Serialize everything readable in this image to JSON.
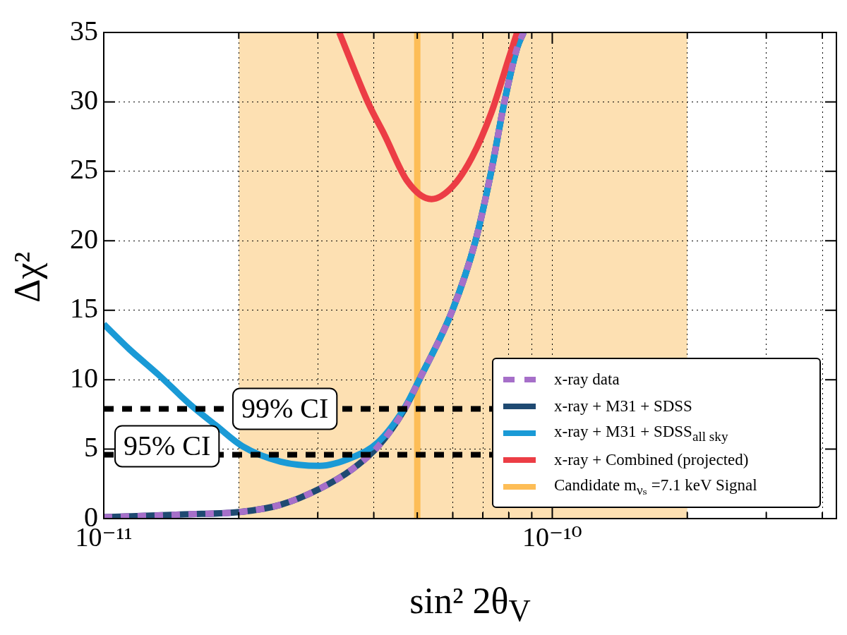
{
  "chart_data": {
    "type": "line",
    "xlabel": "sin² 2θ$_{V}$",
    "ylabel": "Δχ²",
    "log": "x",
    "grid": true,
    "legend": "bottom right",
    "marker": "none",
    "xlim": [
      1e-11,
      4.3e-10
    ],
    "xticks": [
      {
        "value": 1e-11,
        "label": "10⁻¹¹"
      },
      {
        "value": 2e-11,
        "label": null
      },
      {
        "value": 3e-11,
        "label": null
      },
      {
        "value": 4e-11,
        "label": null
      },
      {
        "value": 5e-11,
        "label": null
      },
      {
        "value": 6e-11,
        "label": null
      },
      {
        "value": 7e-11,
        "label": null
      },
      {
        "value": 8e-11,
        "label": null
      },
      {
        "value": 9e-11,
        "label": null
      },
      {
        "value": 1e-10,
        "label": "10⁻¹⁰"
      },
      {
        "value": 2e-10,
        "label": null
      },
      {
        "value": 3e-10,
        "label": null
      },
      {
        "value": 4e-10,
        "label": null
      }
    ],
    "ylim": [
      0,
      35
    ],
    "yticks": [
      0,
      5,
      10,
      15,
      20,
      25,
      30,
      35
    ],
    "series": [
      {
        "name": "x-ray data",
        "color": "#a66fc9",
        "line_style": "dashed",
        "x": [
          1e-11,
          1.51e-11,
          2.04e-11,
          2.48e-11,
          3.03e-11,
          3.58e-11,
          4.09e-11,
          4.67e-11,
          5.07e-11,
          5.99e-11,
          6.73e-11,
          7.31e-11,
          7.81e-11,
          8.35e-11,
          8.63e-11
        ],
        "values": [
          0.1,
          0.3,
          0.5,
          1.0,
          2.15,
          3.55,
          5.2,
          7.8,
          10.1,
          15.0,
          19.9,
          25.0,
          29.9,
          33.9,
          35
        ]
      },
      {
        "name": "x-ray + M31 + SDSS",
        "color": "#1f4a72",
        "line_style": "solid",
        "x": [
          1e-11,
          1.51e-11,
          2.04e-11,
          2.48e-11,
          3.03e-11,
          3.58e-11,
          4.09e-11,
          4.67e-11,
          5.07e-11,
          5.99e-11,
          6.73e-11,
          7.31e-11,
          7.81e-11,
          8.35e-11,
          8.63e-11
        ],
        "values": [
          0.1,
          0.3,
          0.5,
          1.0,
          2.15,
          3.55,
          5.2,
          7.8,
          10.1,
          15.0,
          19.9,
          25.0,
          29.9,
          33.9,
          35
        ]
      },
      {
        "name": "x-ray + M31 + SDSS$_{all sky}$",
        "color": "#1a9ad6",
        "line_style": "solid",
        "x": [
          1e-11,
          1.14e-11,
          1.32e-11,
          1.56e-11,
          1.78e-11,
          2.04e-11,
          2.48e-11,
          3.03e-11,
          3.58e-11,
          4.09e-11,
          4.67e-11,
          5.07e-11,
          5.99e-11,
          6.73e-11,
          7.31e-11,
          7.81e-11,
          8.35e-11,
          8.63e-11
        ],
        "values": [
          14.0,
          12.2,
          10.4,
          8.2,
          6.7,
          5.2,
          4.1,
          3.8,
          4.4,
          5.5,
          7.9,
          10.1,
          15.0,
          19.9,
          25.0,
          29.9,
          33.9,
          35
        ]
      },
      {
        "name": "x-ray + Combined (projected)",
        "color": "#ec3d45",
        "line_style": "solid",
        "x": [
          3.35e-11,
          3.89e-11,
          4.23e-11,
          4.75e-11,
          5.38e-11,
          5.99e-11,
          6.62e-11,
          7.31e-11,
          8.01e-11,
          8.35e-11
        ],
        "values": [
          35,
          29.9,
          27.6,
          24.3,
          23.0,
          23.9,
          26.0,
          29.2,
          33.2,
          35
        ]
      },
      {
        "name": "Candidate m$_{νₛ}$ =7.1 keV Signal",
        "color": "#fdbd56",
        "line_style": "solid",
        "x": [
          5e-11,
          5e-11
        ],
        "values": [
          0,
          35
        ]
      }
    ],
    "ref_lines": [
      {
        "axis": "y",
        "value": 7.9,
        "label": "99% CI",
        "color": "#000000",
        "line_style": "dashed"
      },
      {
        "axis": "y",
        "value": 4.6,
        "label": "95% CI",
        "color": "#000000",
        "line_style": "dashed"
      }
    ],
    "bands": [
      {
        "axis": "x",
        "from": 2e-11,
        "to": 2e-10,
        "color": "#fde0b2"
      }
    ]
  }
}
